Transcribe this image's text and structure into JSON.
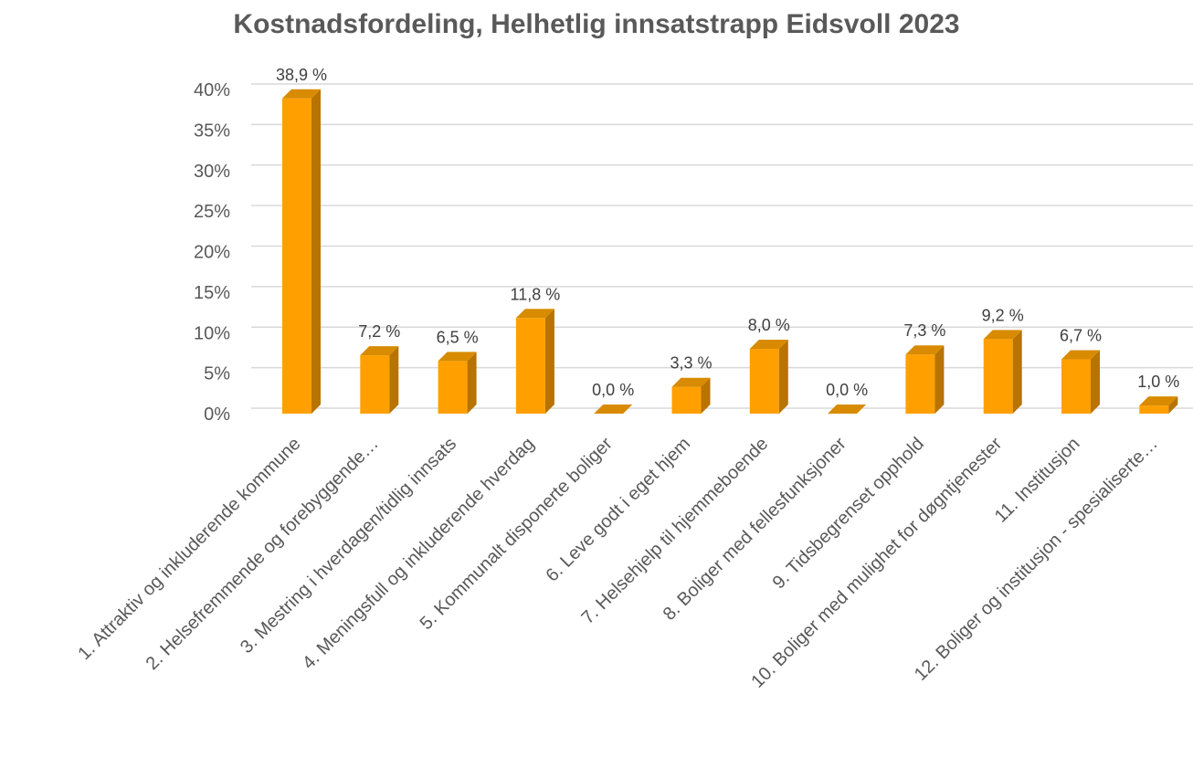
{
  "chart_data": {
    "type": "bar",
    "title": "Kostnadsfordeling, Helhetlig innsatstrapp Eidsvoll 2023",
    "xlabel": "",
    "ylabel": "",
    "ylim": [
      0,
      40
    ],
    "yticks": [
      "0%",
      "5%",
      "10%",
      "15%",
      "20%",
      "25%",
      "30%",
      "35%",
      "40%"
    ],
    "grid": true,
    "legend": "none",
    "bar_color": "#FFA000",
    "bar_side_color": "#B87300",
    "bar_top_color": "#D88B00",
    "categories": [
      "1. Attraktiv og inkluderende kommune",
      "2. Helsefremmende og forebyggende…",
      "3. Mestring i hverdagen/tidlig innsats",
      "4. Meningsfull og inkluderende hverdag",
      "5. Kommunalt disponerte boliger",
      "6. Leve godt i eget hjem",
      "7. Helsehjelp til hjemmeboende",
      "8. Boliger med fellesfunksjoner",
      "9. Tidsbegrenset opphold",
      "10. Boliger med mulighet for døgntjenester",
      "11. Institusjon",
      "12. Boliger og institusjon - spesialiserte…"
    ],
    "values": [
      38.9,
      7.2,
      6.5,
      11.8,
      0.0,
      3.3,
      8.0,
      0.0,
      7.3,
      9.2,
      6.7,
      1.0
    ],
    "data_labels": [
      "38,9 %",
      "7,2 %",
      "6,5 %",
      "11,8 %",
      "0,0 %",
      "3,3 %",
      "8,0 %",
      "0,0 %",
      "7,3 %",
      "9,2 %",
      "6,7 %",
      "1,0 %"
    ]
  }
}
